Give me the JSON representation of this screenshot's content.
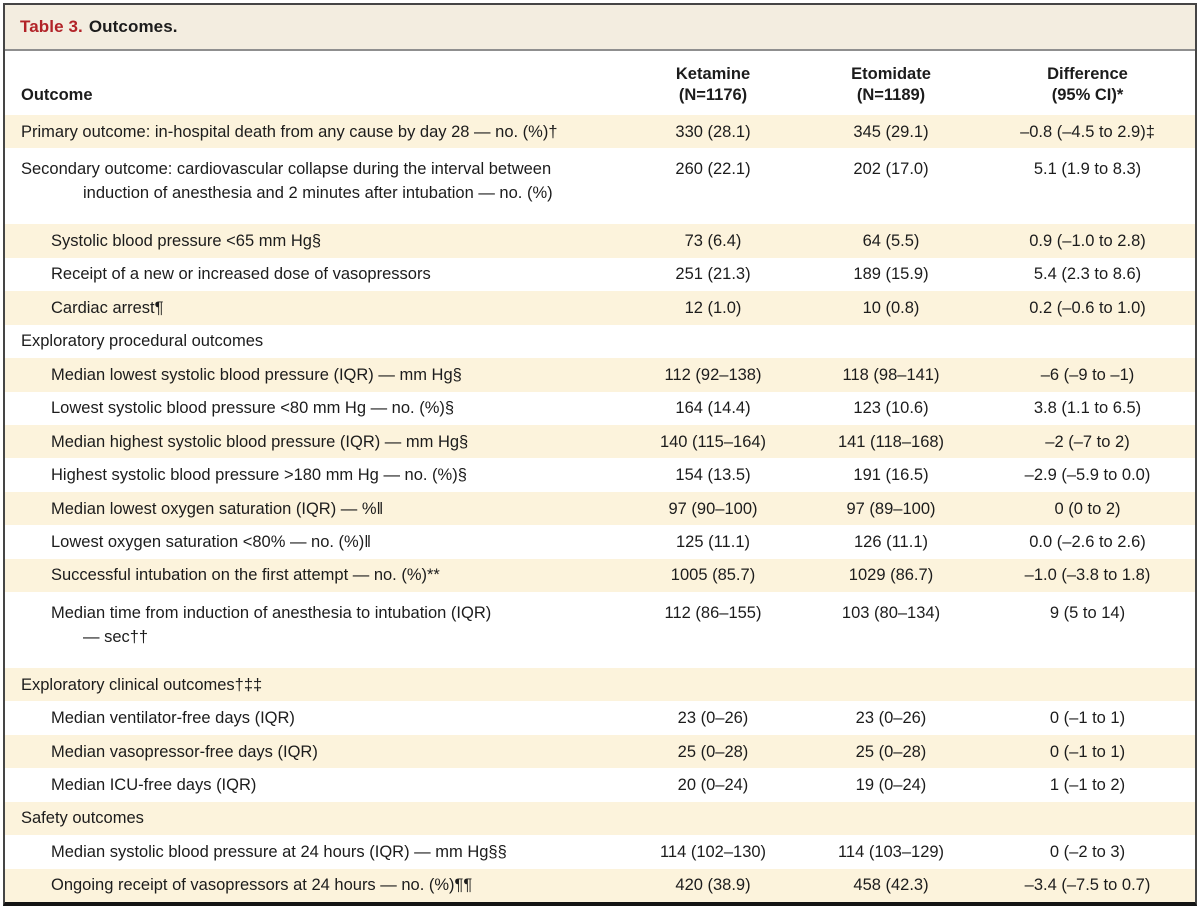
{
  "colors": {
    "title_red": "#b22328",
    "header_band": "#f3ede0",
    "row_stripe": "#fcf3dc",
    "text": "#1c1c1c",
    "border_dark": "#454545"
  },
  "table": {
    "title": {
      "label": "Table 3.",
      "text": "Outcomes."
    },
    "header": {
      "outcome": "Outcome",
      "ketamine": [
        "Ketamine",
        "(N=1176)"
      ],
      "etomidate": [
        "Etomidate",
        "(N=1189)"
      ],
      "difference": [
        "Difference",
        "(95% CI)*"
      ]
    },
    "rows": [
      {
        "label": "Primary outcome: in-hospital death from any cause by day 28 — no. (%)†",
        "indent": 0,
        "section": false,
        "ketamine": "330 (28.1)",
        "etomidate": "345 (29.1)",
        "difference": "–0.8 (–4.5 to 2.9)‡"
      },
      {
        "label": "Secondary outcome: cardiovascular collapse during the interval between",
        "label2": "induction of anesthesia and 2 minutes after intubation — no. (%)",
        "indent": 0,
        "section": false,
        "ketamine": "260 (22.1)",
        "etomidate": "202 (17.0)",
        "difference": "5.1 (1.9 to 8.3)"
      },
      {
        "label": "Systolic blood pressure <65 mm Hg§",
        "indent": 1,
        "section": false,
        "ketamine": "73 (6.4)",
        "etomidate": "64 (5.5)",
        "difference": "0.9 (–1.0 to 2.8)"
      },
      {
        "label": "Receipt of a new or increased dose of vasopressors",
        "indent": 1,
        "section": false,
        "ketamine": "251 (21.3)",
        "etomidate": "189 (15.9)",
        "difference": "5.4 (2.3 to 8.6)"
      },
      {
        "label": "Cardiac arrest¶",
        "indent": 1,
        "section": false,
        "ketamine": "12 (1.0)",
        "etomidate": "10 (0.8)",
        "difference": "0.2 (–0.6 to 1.0)"
      },
      {
        "label": "Exploratory procedural outcomes",
        "indent": 0,
        "section": true,
        "ketamine": "",
        "etomidate": "",
        "difference": ""
      },
      {
        "label": "Median lowest systolic blood pressure (IQR) — mm Hg§",
        "indent": 1,
        "section": false,
        "ketamine": "112 (92–138)",
        "etomidate": "118 (98–141)",
        "difference": "–6 (–9 to –1)"
      },
      {
        "label": "Lowest systolic blood pressure <80 mm Hg — no. (%)§",
        "indent": 1,
        "section": false,
        "ketamine": "164 (14.4)",
        "etomidate": "123 (10.6)",
        "difference": "3.8 (1.1 to 6.5)"
      },
      {
        "label": "Median highest systolic blood pressure (IQR) — mm Hg§",
        "indent": 1,
        "section": false,
        "ketamine": "140 (115–164)",
        "etomidate": "141 (118–168)",
        "difference": "–2 (–7 to 2)"
      },
      {
        "label": "Highest systolic blood pressure >180 mm Hg — no. (%)§",
        "indent": 1,
        "section": false,
        "ketamine": "154 (13.5)",
        "etomidate": "191 (16.5)",
        "difference": "–2.9 (–5.9 to 0.0)"
      },
      {
        "label": "Median lowest oxygen saturation (IQR) — %‖",
        "indent": 1,
        "section": false,
        "ketamine": "97 (90–100)",
        "etomidate": "97 (89–100)",
        "difference": "0 (0 to 2)"
      },
      {
        "label": "Lowest oxygen saturation <80% — no. (%)‖",
        "indent": 1,
        "section": false,
        "ketamine": "125 (11.1)",
        "etomidate": "126 (11.1)",
        "difference": "0.0 (–2.6 to 2.6)"
      },
      {
        "label": "Successful intubation on the first attempt — no. (%)**",
        "indent": 1,
        "section": false,
        "ketamine": "1005 (85.7)",
        "etomidate": "1029 (86.7)",
        "difference": "–1.0 (–3.8 to 1.8)"
      },
      {
        "label": "Median time from induction of anesthesia to intubation (IQR)",
        "label2": "— sec††",
        "indent": 1,
        "section": false,
        "ketamine": "112 (86–155)",
        "etomidate": "103 (80–134)",
        "difference": "9 (5 to 14)"
      },
      {
        "label": "Exploratory clinical outcomes†‡‡",
        "indent": 0,
        "section": true,
        "ketamine": "",
        "etomidate": "",
        "difference": ""
      },
      {
        "label": "Median ventilator-free days (IQR)",
        "indent": 1,
        "section": false,
        "ketamine": "23 (0–26)",
        "etomidate": "23 (0–26)",
        "difference": "0 (–1 to 1)"
      },
      {
        "label": "Median vasopressor-free days (IQR)",
        "indent": 1,
        "section": false,
        "ketamine": "25 (0–28)",
        "etomidate": "25 (0–28)",
        "difference": "0 (–1 to 1)"
      },
      {
        "label": "Median ICU-free days (IQR)",
        "indent": 1,
        "section": false,
        "ketamine": "20 (0–24)",
        "etomidate": "19 (0–24)",
        "difference": "1 (–1 to 2)"
      },
      {
        "label": "Safety outcomes",
        "indent": 0,
        "section": true,
        "ketamine": "",
        "etomidate": "",
        "difference": ""
      },
      {
        "label": "Median systolic blood pressure at 24 hours (IQR) — mm Hg§§",
        "indent": 1,
        "section": false,
        "ketamine": "114 (102–130)",
        "etomidate": "114 (103–129)",
        "difference": "0 (–2 to 3)"
      },
      {
        "label": "Ongoing receipt of vasopressors at 24 hours — no. (%)¶¶",
        "indent": 1,
        "section": false,
        "ketamine": "420 (38.9)",
        "etomidate": "458 (42.3)",
        "difference": "–3.4 (–7.5 to 0.7)"
      }
    ]
  }
}
